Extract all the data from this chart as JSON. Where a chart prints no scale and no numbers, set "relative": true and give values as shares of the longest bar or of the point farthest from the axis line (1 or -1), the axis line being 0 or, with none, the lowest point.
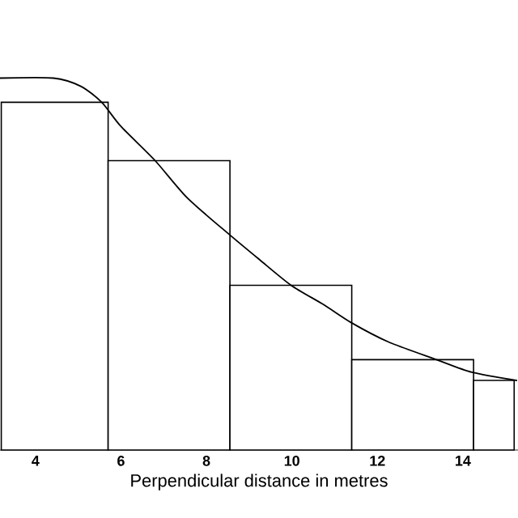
{
  "chart_data": {
    "type": "histogram",
    "xlabel": "Perpendicular distance in metres",
    "relative": true,
    "xlim": [
      3.17,
      15.29
    ],
    "xticks": [
      4,
      6,
      8,
      10,
      12,
      14
    ],
    "series": [
      {
        "bins": [
          3.2,
          5.7,
          8.55,
          11.4,
          14.25,
          15.2
        ],
        "values": [
          0.935,
          0.778,
          0.443,
          0.243,
          0.187
        ],
        "color": "#000000"
      },
      {
        "type": "line",
        "x": [
          3.17,
          4.42,
          5.06,
          5.55,
          6.0,
          6.8,
          7.55,
          8.55,
          9.23,
          9.98,
          10.74,
          11.38,
          12.25,
          13.38,
          14.21,
          15.27
        ],
        "values": [
          1.0,
          1.0,
          0.978,
          0.935,
          0.87,
          0.778,
          0.678,
          0.578,
          0.513,
          0.443,
          0.391,
          0.343,
          0.291,
          0.243,
          0.209,
          0.187
        ],
        "color": "#000000"
      }
    ]
  }
}
